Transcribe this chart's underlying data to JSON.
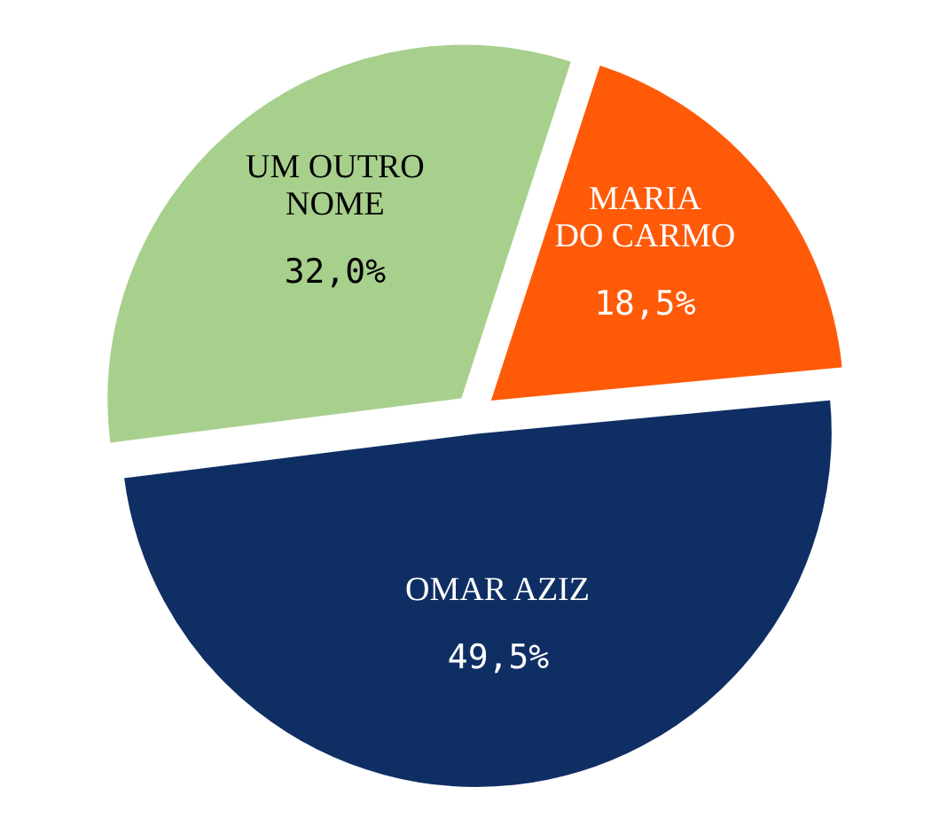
{
  "chart_data": {
    "type": "pie",
    "categories": [
      "MARIA\nDO CARMO",
      "OMAR AZIZ",
      "UM OUTRO\nNOME"
    ],
    "values": [
      18.5,
      49.5,
      32.0
    ],
    "value_labels": [
      "18,5%",
      "49,5%",
      "32,0%"
    ],
    "colors": [
      "#fe5a08",
      "#0f2f64",
      "#a8d08d"
    ]
  }
}
